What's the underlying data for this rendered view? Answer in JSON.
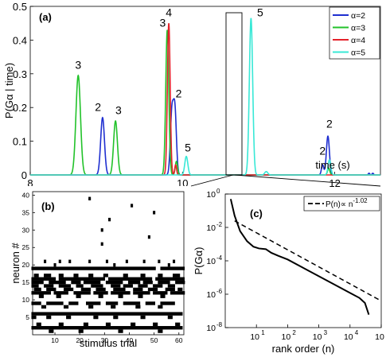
{
  "chart_data": [
    {
      "panel": "(a)",
      "type": "line",
      "ylabel": "P(Gα | time)",
      "xlabel": "time (s)",
      "xlim": [
        8,
        12.6
      ],
      "ylim": [
        0,
        0.5
      ],
      "x_ticks": [
        8,
        10,
        12
      ],
      "x_tick_labels": [
        "8",
        "10",
        "12"
      ],
      "y_ticks": [
        0,
        0.1,
        0.2,
        0.3,
        0.4,
        0.5
      ],
      "y_tick_labels": [
        "0",
        "0.1",
        "0.2",
        "0.3",
        "0.4",
        "0.5"
      ],
      "legend_position": "top-right",
      "colors": {
        "a2": "#1f2fd0",
        "a3": "#22c22a",
        "a4": "#e4222a",
        "a5": "#38e8d6"
      },
      "series": [
        {
          "name": "α=2",
          "color": "#1f2fd0",
          "peaks": [
            {
              "t": 8.95,
              "h": 0.17,
              "w": 0.025
            },
            {
              "t": 9.86,
              "h": 0.18,
              "w": 0.02
            },
            {
              "t": 9.9,
              "h": 0.19,
              "w": 0.02
            },
            {
              "t": 11.84,
              "h": 0.03,
              "w": 0.015
            },
            {
              "t": 11.91,
              "h": 0.115,
              "w": 0.02
            },
            {
              "t": 12.45,
              "h": 0.005,
              "w": 0.01
            },
            {
              "t": 12.5,
              "h": 0.005,
              "w": 0.01
            }
          ]
        },
        {
          "name": "α=3",
          "color": "#22c22a",
          "peaks": [
            {
              "t": 8.63,
              "h": 0.295,
              "w": 0.03
            },
            {
              "t": 9.12,
              "h": 0.16,
              "w": 0.025
            },
            {
              "t": 9.8,
              "h": 0.43,
              "w": 0.02
            },
            {
              "t": 9.92,
              "h": 0.04,
              "w": 0.015
            },
            {
              "t": 11.92,
              "h": 0.02,
              "w": 0.015
            }
          ]
        },
        {
          "name": "α=4",
          "color": "#e4222a",
          "peaks": [
            {
              "t": 9.82,
              "h": 0.45,
              "w": 0.018
            },
            {
              "t": 9.91,
              "h": 0.03,
              "w": 0.012
            }
          ]
        },
        {
          "name": "α=5",
          "color": "#38e8d6",
          "peaks": [
            {
              "t": 10.05,
              "h": 0.055,
              "w": 0.02
            },
            {
              "t": 10.9,
              "h": 0.465,
              "w": 0.022
            },
            {
              "t": 11.1,
              "h": 0.01,
              "w": 0.02
            },
            {
              "t": 11.93,
              "h": 0.045,
              "w": 0.018
            }
          ]
        }
      ],
      "annotations": [
        {
          "text": "3",
          "x": 8.63,
          "y": 0.315
        },
        {
          "text": "2",
          "x": 8.89,
          "y": 0.19
        },
        {
          "text": "3",
          "x": 9.16,
          "y": 0.18
        },
        {
          "text": "3",
          "x": 9.74,
          "y": 0.44
        },
        {
          "text": "4",
          "x": 9.82,
          "y": 0.47
        },
        {
          "text": "2",
          "x": 9.95,
          "y": 0.23
        },
        {
          "text": "5",
          "x": 10.07,
          "y": 0.07
        },
        {
          "text": "5",
          "x": 11.02,
          "y": 0.47
        },
        {
          "text": "2",
          "x": 11.84,
          "y": 0.06
        },
        {
          "text": "2",
          "x": 11.93,
          "y": 0.14
        }
      ]
    },
    {
      "panel": "(b)",
      "type": "heatmap",
      "xlabel": "stimulus trial",
      "ylabel": "neuron #",
      "xlim": [
        1,
        62
      ],
      "ylim": [
        0,
        41
      ],
      "x_ticks": [
        10,
        20,
        30,
        40,
        50,
        60
      ],
      "x_tick_labels": [
        "10",
        "20",
        "30",
        "40",
        "50",
        "60"
      ],
      "y_ticks": [
        5,
        10,
        15,
        20,
        25,
        30,
        35,
        40
      ],
      "y_tick_labels": [
        "5",
        "10",
        "15",
        "20",
        "25",
        "30",
        "35",
        "40"
      ],
      "active_rows": [
        {
          "neuron": 19,
          "trials": [
            [
              1,
              51
            ],
            [
              53,
              62
            ]
          ]
        },
        {
          "neuron": 17,
          "trials": [
            [
              2,
              3
            ],
            [
              6,
              8
            ],
            [
              12,
              13
            ],
            [
              18,
              19
            ],
            [
              24,
              25
            ],
            [
              30,
              31
            ],
            [
              38,
              39
            ],
            [
              45,
              46
            ],
            [
              52,
              53
            ],
            [
              58,
              60
            ]
          ]
        },
        {
          "neuron": 16,
          "trials": [
            [
              1,
              10
            ],
            [
              12,
              30
            ],
            [
              32,
              49
            ],
            [
              51,
              62
            ]
          ]
        },
        {
          "neuron": 15,
          "trials": [
            [
              1,
              5
            ],
            [
              8,
              14
            ],
            [
              17,
              20
            ],
            [
              22,
              28
            ],
            [
              31,
              37
            ],
            [
              40,
              44
            ],
            [
              46,
              49
            ],
            [
              52,
              56
            ],
            [
              59,
              62
            ]
          ]
        },
        {
          "neuron": 14,
          "trials": [
            [
              1,
              3
            ],
            [
              6,
              9
            ],
            [
              12,
              16
            ],
            [
              19,
              21
            ],
            [
              25,
              29
            ],
            [
              33,
              36
            ],
            [
              38,
              41
            ],
            [
              44,
              47
            ],
            [
              50,
              53
            ],
            [
              56,
              58
            ]
          ]
        },
        {
          "neuron": 13,
          "trials": [
            [
              2,
              4
            ],
            [
              7,
              10
            ],
            [
              14,
              17
            ],
            [
              21,
              24
            ],
            [
              27,
              30
            ],
            [
              34,
              38
            ],
            [
              42,
              45
            ],
            [
              48,
              51
            ],
            [
              55,
              58
            ],
            [
              60,
              61
            ]
          ]
        },
        {
          "neuron": 12,
          "trials": [
            [
              1,
              8
            ],
            [
              10,
              15
            ],
            [
              18,
              24
            ],
            [
              26,
              31
            ],
            [
              33,
              40
            ],
            [
              42,
              48
            ],
            [
              50,
              55
            ],
            [
              57,
              62
            ]
          ]
        },
        {
          "neuron": 11,
          "trials": [
            [
              4,
              5
            ],
            [
              11,
              12
            ],
            [
              19,
              20
            ],
            [
              28,
              29
            ],
            [
              36,
              37
            ],
            [
              44,
              45
            ],
            [
              53,
              54
            ]
          ]
        },
        {
          "neuron": 9,
          "trials": [
            [
              1,
              4
            ],
            [
              7,
              13
            ],
            [
              16,
              19
            ],
            [
              23,
              28
            ],
            [
              31,
              35
            ],
            [
              38,
              44
            ],
            [
              47,
              50
            ],
            [
              53,
              58
            ]
          ]
        },
        {
          "neuron": 8,
          "trials": [
            [
              5,
              6
            ],
            [
              14,
              15
            ],
            [
              24,
              25
            ],
            [
              33,
              34
            ],
            [
              43,
              44
            ],
            [
              52,
              53
            ]
          ]
        },
        {
          "neuron": 6,
          "trials": [
            [
              1,
              62
            ]
          ]
        },
        {
          "neuron": 5,
          "trials": [
            [
              1,
              2
            ],
            [
              7,
              8
            ],
            [
              15,
              16
            ],
            [
              26,
              27
            ],
            [
              34,
              35
            ],
            [
              45,
              46
            ],
            [
              56,
              57
            ]
          ]
        },
        {
          "neuron": 3,
          "trials": [
            [
              3,
              4
            ],
            [
              12,
              13
            ],
            [
              22,
              23
            ],
            [
              31,
              32
            ],
            [
              41,
              42
            ],
            [
              50,
              51
            ],
            [
              59,
              60
            ]
          ]
        },
        {
          "neuron": 2,
          "trials": [
            [
              1,
              62
            ]
          ]
        },
        {
          "neuron": 1,
          "trials": [
            [
              8,
              9
            ],
            [
              20,
              21
            ],
            [
              36,
              37
            ],
            [
              52,
              53
            ]
          ]
        }
      ],
      "sparse_spikes": [
        {
          "trial": 6,
          "neuron": 21
        },
        {
          "trial": 12,
          "neuron": 21
        },
        {
          "trial": 16,
          "neuron": 21
        },
        {
          "trial": 24,
          "neuron": 21
        },
        {
          "trial": 31,
          "neuron": 21
        },
        {
          "trial": 39,
          "neuron": 21
        },
        {
          "trial": 46,
          "neuron": 21
        },
        {
          "trial": 52,
          "neuron": 21
        },
        {
          "trial": 58,
          "neuron": 21
        },
        {
          "trial": 10,
          "neuron": 20
        },
        {
          "trial": 34,
          "neuron": 20
        },
        {
          "trial": 56,
          "neuron": 20
        },
        {
          "trial": 29,
          "neuron": 26
        },
        {
          "trial": 29,
          "neuron": 30
        },
        {
          "trial": 32,
          "neuron": 33
        },
        {
          "trial": 50,
          "neuron": 35
        },
        {
          "trial": 41,
          "neuron": 37
        },
        {
          "trial": 24,
          "neuron": 39
        },
        {
          "trial": 11,
          "neuron": 36
        },
        {
          "trial": 48,
          "neuron": 28
        }
      ]
    },
    {
      "panel": "(c)",
      "type": "line",
      "xlabel": "rank order (n)",
      "ylabel": "P(Gα)",
      "x_scale": "log",
      "y_scale": "log",
      "xlim": [
        1,
        100000
      ],
      "ylim": [
        1e-08,
        1
      ],
      "x_ticks": [
        10,
        100,
        1000,
        10000,
        100000
      ],
      "x_tick_labels": [
        {
          "base": "10",
          "exp": "1"
        },
        {
          "base": "10",
          "exp": "2"
        },
        {
          "base": "10",
          "exp": "3"
        },
        {
          "base": "10",
          "exp": "4"
        },
        {
          "base": "10",
          "exp": "5"
        }
      ],
      "y_ticks": [
        1e-08,
        1e-06,
        0.0001,
        0.01,
        1
      ],
      "y_tick_labels": [
        {
          "base": "10",
          "exp": "-8"
        },
        {
          "base": "10",
          "exp": "-6"
        },
        {
          "base": "10",
          "exp": "-4"
        },
        {
          "base": "10",
          "exp": "-2"
        },
        {
          "base": "10",
          "exp": "0"
        }
      ],
      "legend_position": "top-right",
      "legend": {
        "text": "P(n)∝ n",
        "exp": "-1.02"
      },
      "data": {
        "x": [
          1.5,
          2,
          3,
          5,
          8,
          12,
          20,
          30,
          50,
          100,
          300,
          1000,
          3000,
          10000,
          20000,
          30000,
          40000
        ],
        "y": [
          0.5,
          0.05,
          0.006,
          0.0015,
          0.0007,
          0.00055,
          0.0005,
          0.0003,
          0.0002,
          0.00012,
          4e-05,
          1.2e-05,
          4e-06,
          1.2e-06,
          6e-07,
          3e-07,
          6e-08
        ]
      },
      "fit": {
        "exponent": -1.02,
        "amplitude": 0.05
      }
    }
  ]
}
